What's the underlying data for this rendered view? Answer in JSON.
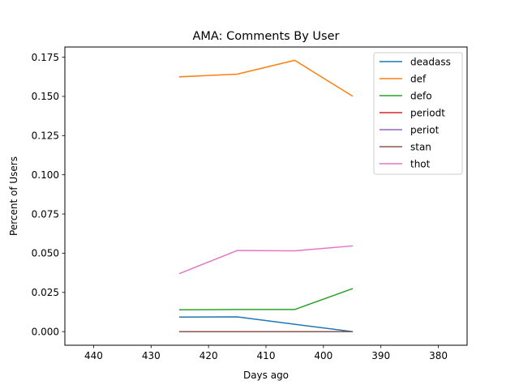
{
  "chart_data": {
    "type": "line",
    "title": "AMA: Comments By User",
    "xlabel": "Days ago",
    "ylabel": "Percent of Users",
    "xlim": [
      445,
      375
    ],
    "ylim": [
      -0.0087,
      0.1815
    ],
    "x_inverted": true,
    "grid": false,
    "legend_position": "top-right",
    "x_ticks": [
      440,
      430,
      420,
      410,
      400,
      390,
      380
    ],
    "y_ticks": [
      "0.000",
      "0.025",
      "0.050",
      "0.075",
      "0.100",
      "0.125",
      "0.150",
      "0.175"
    ],
    "x": [
      425,
      415,
      405,
      395
    ],
    "series": [
      {
        "name": "deadass",
        "color": "#1f77b4",
        "values": [
          0.0093,
          0.0094,
          0.0047,
          0.0
        ]
      },
      {
        "name": "def",
        "color": "#ff7f0e",
        "values": [
          0.1625,
          0.1642,
          0.173,
          0.1503
        ]
      },
      {
        "name": "defo",
        "color": "#2ca02c",
        "values": [
          0.0139,
          0.0141,
          0.0141,
          0.0273
        ]
      },
      {
        "name": "periodt",
        "color": "#d62728",
        "values": [
          0.0,
          0.0,
          0.0,
          0.0
        ]
      },
      {
        "name": "periot",
        "color": "#9467bd",
        "values": [
          0.0,
          0.0,
          0.0,
          0.0
        ]
      },
      {
        "name": "stan",
        "color": "#8c564b",
        "values": [
          0.0,
          0.0,
          0.0,
          0.0
        ]
      },
      {
        "name": "thot",
        "color": "#e377c2",
        "values": [
          0.0371,
          0.0517,
          0.0515,
          0.0546
        ]
      }
    ]
  }
}
